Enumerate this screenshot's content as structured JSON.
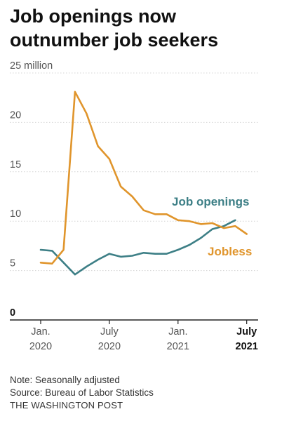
{
  "chart_data": {
    "type": "line",
    "title": "Job openings now outnumber job seekers",
    "title_lines": [
      "Job openings now",
      "outnumber job seekers"
    ],
    "x_months": [
      "2020-01",
      "2020-02",
      "2020-03",
      "2020-04",
      "2020-05",
      "2020-06",
      "2020-07",
      "2020-08",
      "2020-09",
      "2020-10",
      "2020-11",
      "2020-12",
      "2021-01",
      "2021-02",
      "2021-03",
      "2021-04",
      "2021-05",
      "2021-06",
      "2021-07"
    ],
    "xlim": [
      "2020-01",
      "2021-08"
    ],
    "ylim": [
      0,
      25
    ],
    "y_ticks": [
      {
        "value": 0,
        "label": "0"
      },
      {
        "value": 5,
        "label": "5"
      },
      {
        "value": 10,
        "label": "10"
      },
      {
        "value": 15,
        "label": "15"
      },
      {
        "value": 20,
        "label": "20"
      },
      {
        "value": 25,
        "label": "25 million"
      }
    ],
    "x_ticks": [
      {
        "month": "2020-01",
        "line1": "Jan.",
        "line2": "2020",
        "bold": false
      },
      {
        "month": "2020-07",
        "line1": "July",
        "line2": "2020",
        "bold": false
      },
      {
        "month": "2021-01",
        "line1": "Jan.",
        "line2": "2021",
        "bold": false
      },
      {
        "month": "2021-07",
        "line1": "July",
        "line2": "2021",
        "bold": true
      }
    ],
    "grid": true,
    "series": [
      {
        "name": "Job openings",
        "color": "#3d7f86",
        "x": [
          "2020-01",
          "2020-02",
          "2020-03",
          "2020-04",
          "2020-05",
          "2020-06",
          "2020-07",
          "2020-08",
          "2020-09",
          "2020-10",
          "2020-11",
          "2020-12",
          "2021-01",
          "2021-02",
          "2021-03",
          "2021-04",
          "2021-05",
          "2021-06"
        ],
        "values": [
          7.1,
          7.0,
          5.8,
          4.6,
          5.4,
          6.1,
          6.7,
          6.4,
          6.5,
          6.8,
          6.7,
          6.7,
          7.1,
          7.6,
          8.3,
          9.2,
          9.5,
          10.1
        ]
      },
      {
        "name": "Jobless",
        "color": "#e0952c",
        "x": [
          "2020-01",
          "2020-02",
          "2020-03",
          "2020-04",
          "2020-05",
          "2020-06",
          "2020-07",
          "2020-08",
          "2020-09",
          "2020-10",
          "2020-11",
          "2020-12",
          "2021-01",
          "2021-02",
          "2021-03",
          "2021-04",
          "2021-05",
          "2021-06",
          "2021-07"
        ],
        "values": [
          5.8,
          5.7,
          7.1,
          23.1,
          20.9,
          17.6,
          16.3,
          13.5,
          12.5,
          11.1,
          10.7,
          10.7,
          10.1,
          10.0,
          9.7,
          9.8,
          9.3,
          9.5,
          8.7
        ]
      }
    ]
  },
  "notes": {
    "note": "Note: Seasonally adjusted",
    "source": "Source: Bureau of Labor Statistics",
    "credit": "THE WASHINGTON POST"
  }
}
